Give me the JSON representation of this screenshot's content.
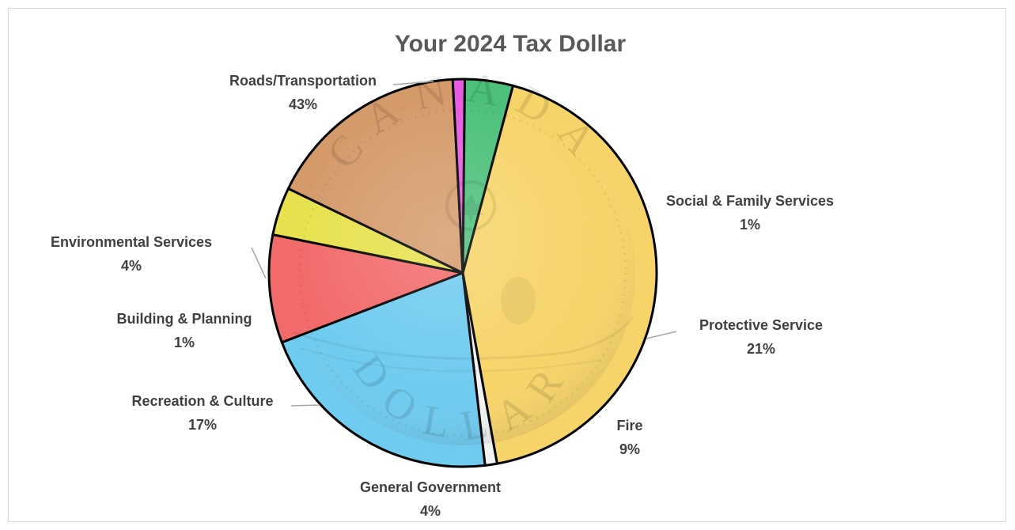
{
  "chart_data": {
    "type": "pie",
    "title": "Your 2024 Tax Dollar",
    "slices": [
      {
        "label": "Roads/Transportation",
        "value": 43,
        "value_label": "43%",
        "color": "#F7D469"
      },
      {
        "label": "Social & Family Services",
        "value": 1,
        "value_label": "1%",
        "color": "#F2F2F2"
      },
      {
        "label": "Protective Service",
        "value": 21,
        "value_label": "21%",
        "color": "#6FCBEF"
      },
      {
        "label": "Fire",
        "value": 9,
        "value_label": "9%",
        "color": "#F26A6A"
      },
      {
        "label": "General Government",
        "value": 4,
        "value_label": "4%",
        "color": "#E6E14C"
      },
      {
        "label": "Recreation & Culture",
        "value": 17,
        "value_label": "17%",
        "color": "#D49A6A"
      },
      {
        "label": "Building & Planning",
        "value": 1,
        "value_label": "1%",
        "color": "#E85BE0"
      },
      {
        "label": "Environmental Services",
        "value": 4,
        "value_label": "4%",
        "color": "#4CC07A"
      }
    ],
    "legend": "none",
    "labels": "outside-with-leader-lines"
  },
  "background_image": {
    "icon": "canadian-loonie-coin",
    "inscriptions": [
      "CANADA",
      "DOLLAR"
    ]
  }
}
